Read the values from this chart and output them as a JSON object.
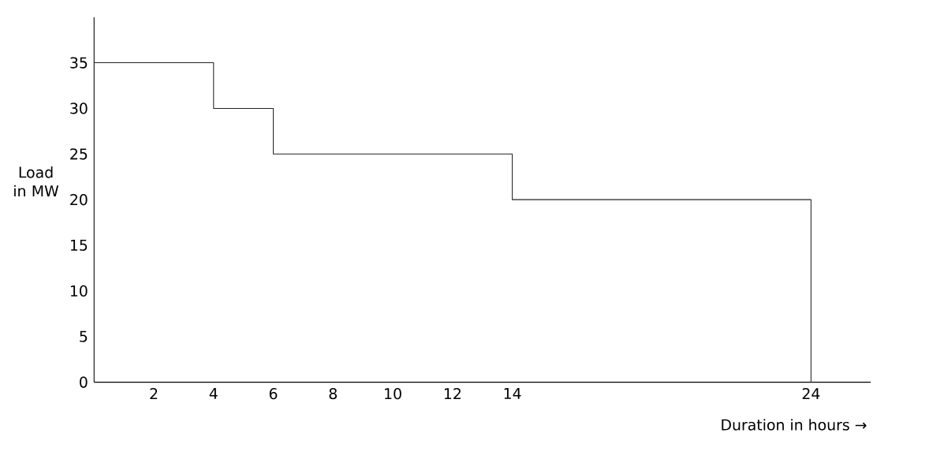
{
  "chart_data": {
    "type": "step",
    "xlabel": "Duration in hours →",
    "ylabel": "Load in MW",
    "x": [
      0,
      4,
      6,
      14,
      24
    ],
    "values": [
      35,
      30,
      25,
      20,
      0
    ],
    "color": "#222222",
    "xlim": [
      0,
      26
    ],
    "ylim": [
      0,
      40
    ],
    "xticks": [
      2,
      4,
      6,
      8,
      10,
      12,
      14,
      24
    ],
    "yticks": [
      0,
      5,
      10,
      15,
      20,
      25,
      30,
      35
    ]
  }
}
